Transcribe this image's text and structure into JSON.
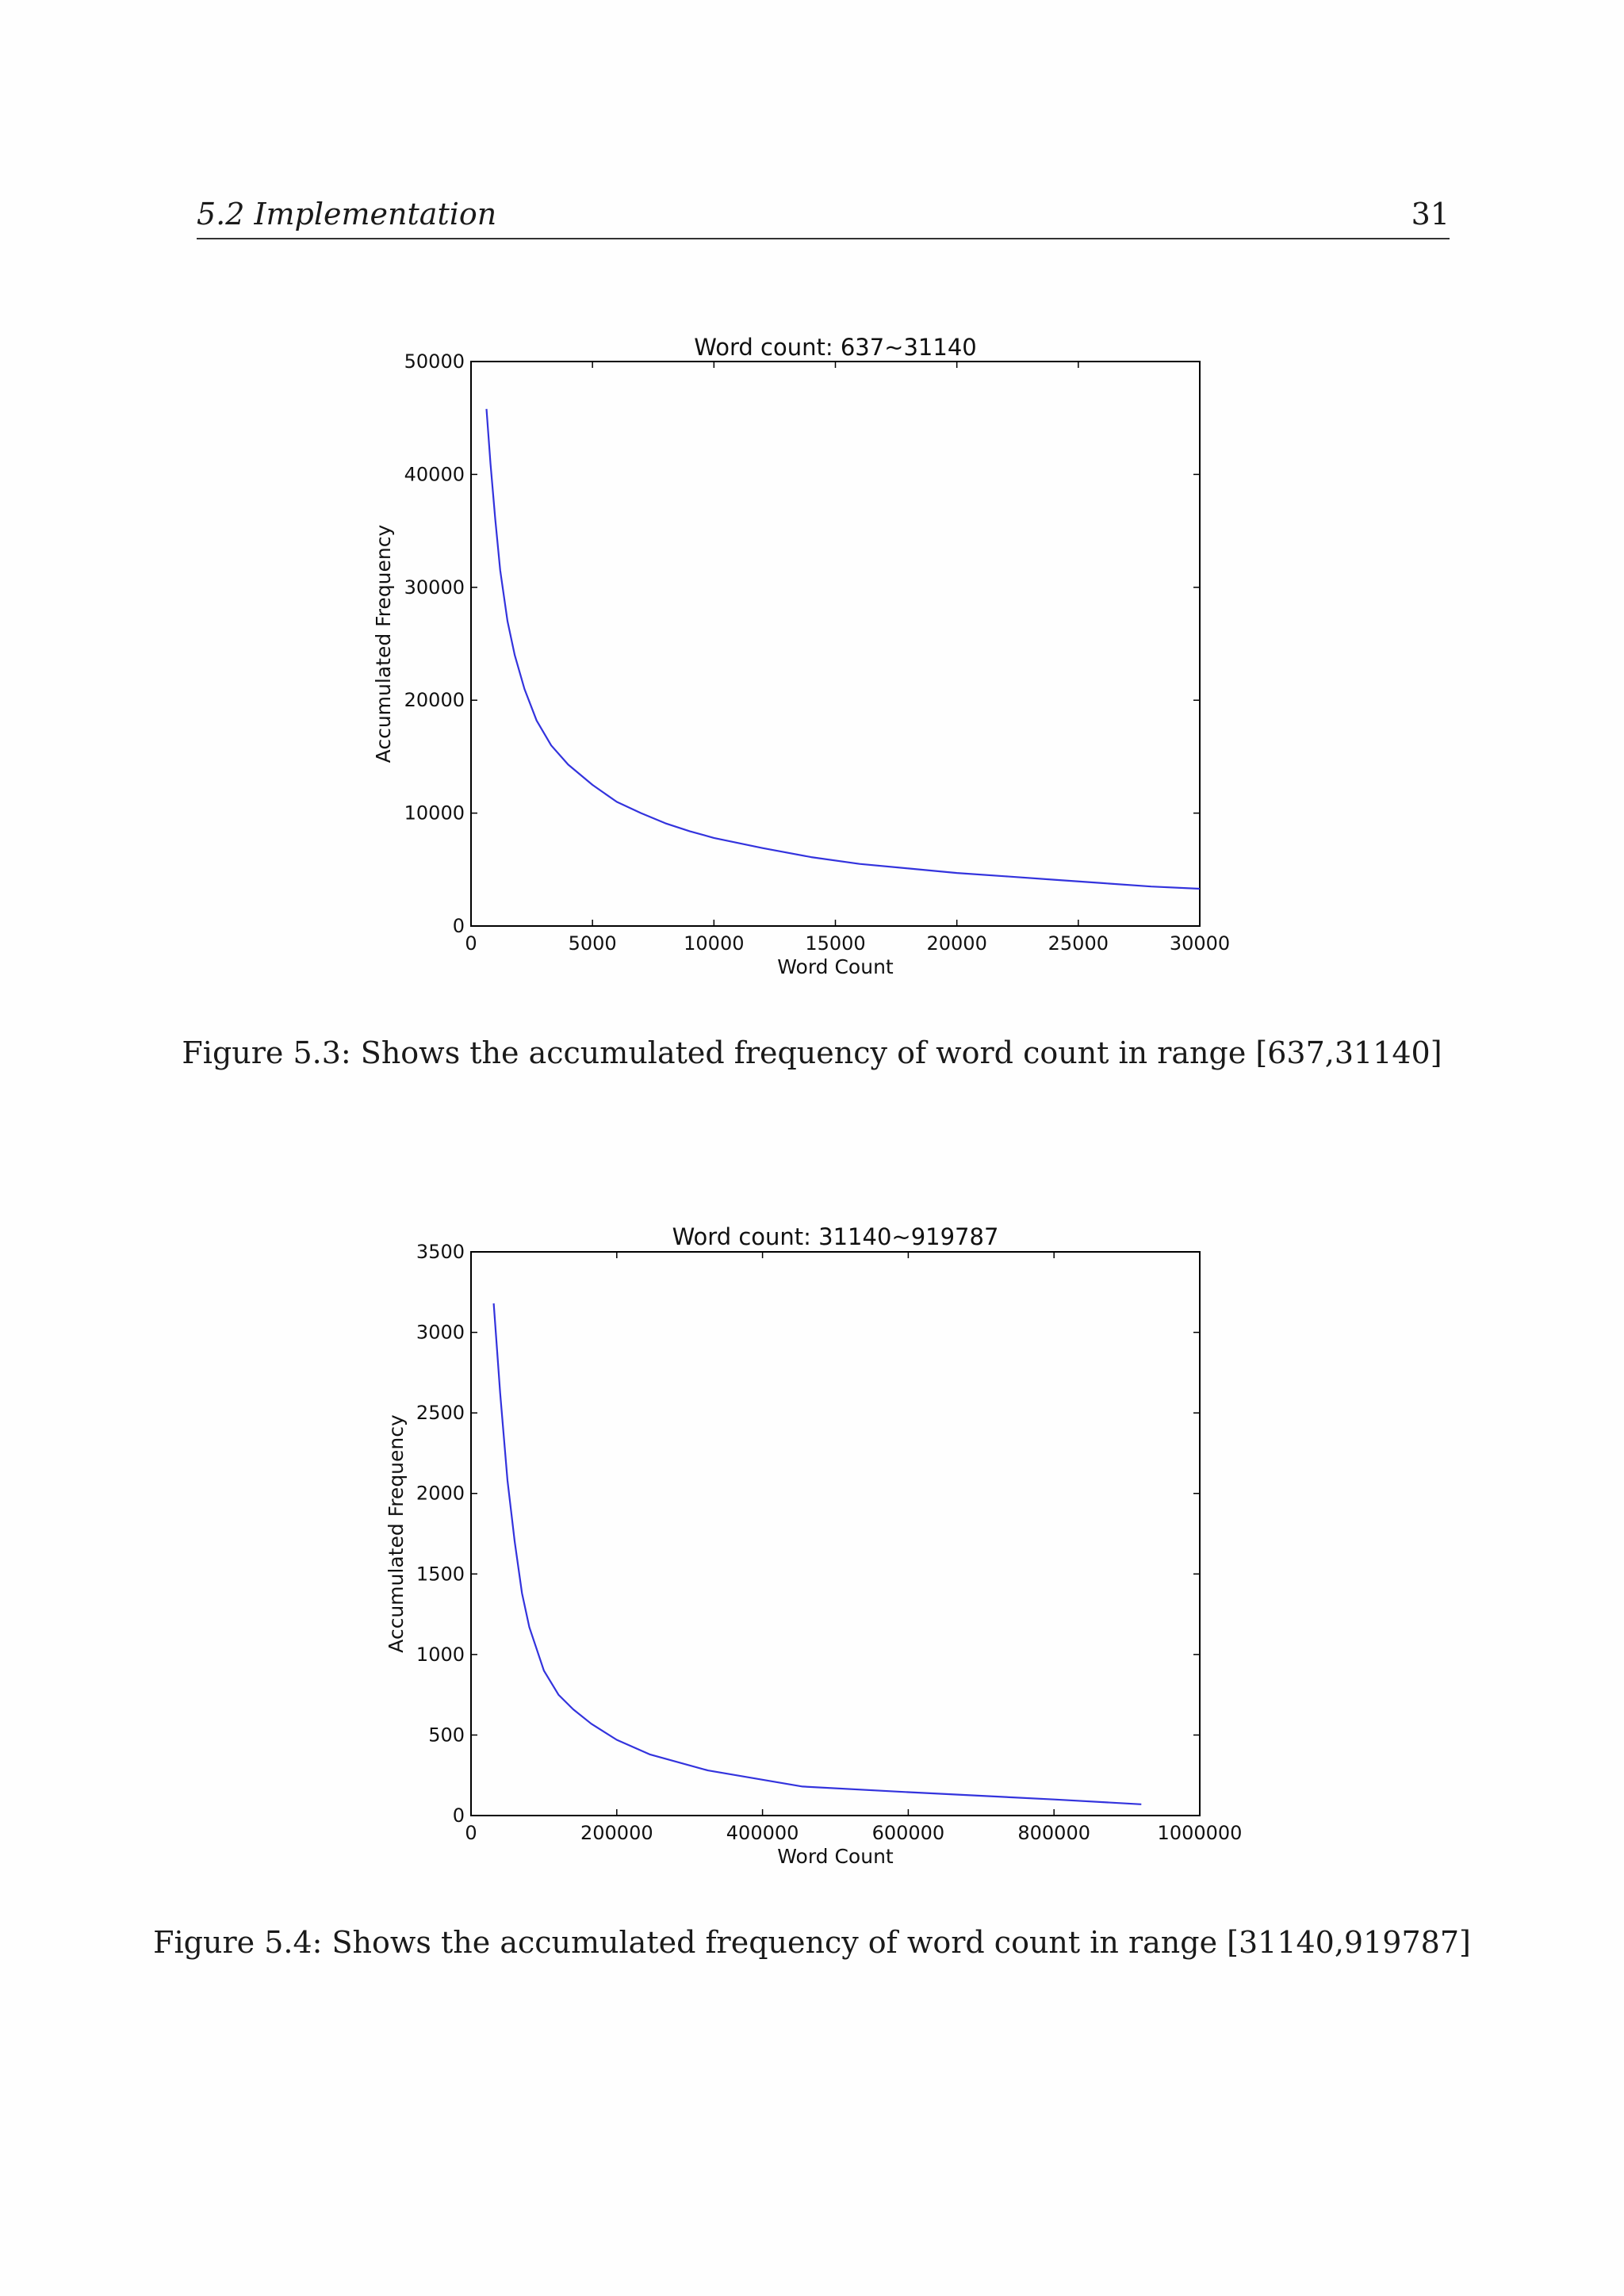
{
  "header": {
    "section": "5.2 Implementation",
    "page_number": "31"
  },
  "figures": [
    {
      "caption": "Figure 5.3: Shows the accumulated frequency of word count in range [637,31140]"
    },
    {
      "caption": "Figure 5.4: Shows the accumulated frequency of word count in range [31140,919787]"
    }
  ],
  "chart_data": [
    {
      "type": "line",
      "title": "Word count: 637~31140",
      "xlabel": "Word Count",
      "ylabel": "Accumulated Frequency",
      "xlim": [
        0,
        30000
      ],
      "ylim": [
        0,
        50000
      ],
      "xticks": [
        "0",
        "5000",
        "10000",
        "15000",
        "20000",
        "25000",
        "30000"
      ],
      "yticks": [
        "0",
        "10000",
        "20000",
        "30000",
        "40000",
        "50000"
      ],
      "grid": false,
      "line_color": "#3333dd",
      "series": [
        {
          "x": [
            637,
            800,
            1000,
            1200,
            1500,
            1800,
            2200,
            2700,
            3300,
            4000,
            5000,
            6000,
            7000,
            8000,
            9000,
            10000,
            12000,
            14000,
            16000,
            18000,
            20000,
            22000,
            24000,
            26000,
            28000,
            30000
          ],
          "values": [
            45800,
            41000,
            36000,
            31500,
            27000,
            24000,
            21000,
            18200,
            16000,
            14300,
            12500,
            11000,
            10000,
            9100,
            8400,
            7800,
            6900,
            6100,
            5500,
            5100,
            4700,
            4400,
            4100,
            3800,
            3500,
            3300
          ]
        }
      ]
    },
    {
      "type": "line",
      "title": "Word count: 31140~919787",
      "xlabel": "Word Count",
      "ylabel": "Accumulated Frequency",
      "xlim": [
        0,
        1000000
      ],
      "ylim": [
        0,
        3500
      ],
      "xticks": [
        "0",
        "200000",
        "400000",
        "600000",
        "800000",
        "1000000"
      ],
      "yticks": [
        "0",
        "500",
        "1000",
        "1500",
        "2000",
        "2500",
        "3000",
        "3500"
      ],
      "grid": false,
      "line_color": "#3333dd",
      "series": [
        {
          "x": [
            31140,
            40000,
            50000,
            60000,
            70000,
            80000,
            100000,
            120000,
            140000,
            165000,
            200000,
            245000,
            325000,
            455000,
            600000,
            800000,
            919787
          ],
          "values": [
            3180,
            2620,
            2080,
            1700,
            1380,
            1170,
            900,
            750,
            660,
            570,
            470,
            380,
            280,
            180,
            145,
            100,
            70
          ]
        }
      ]
    }
  ]
}
